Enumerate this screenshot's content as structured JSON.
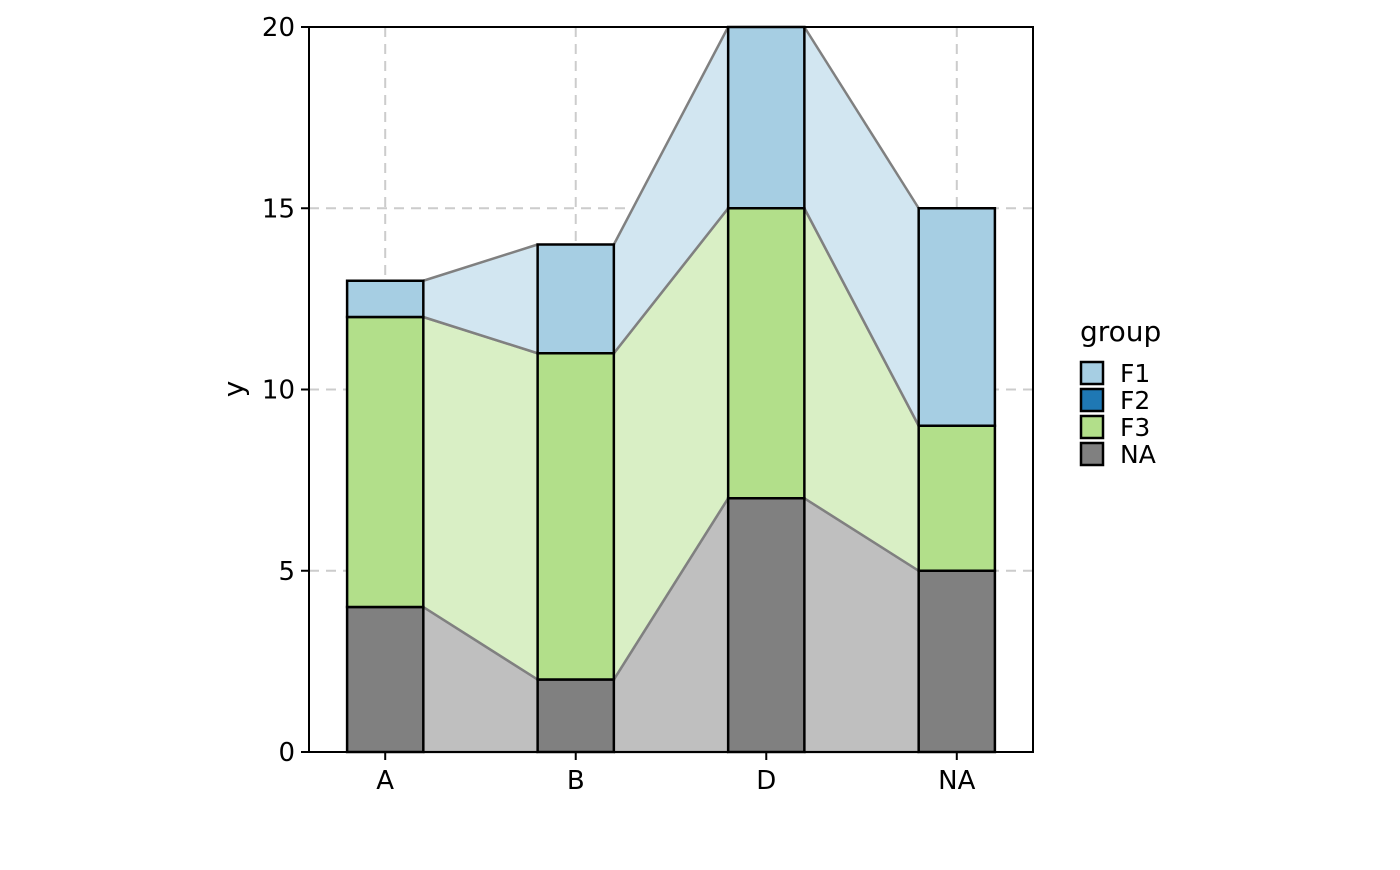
{
  "chart_data": {
    "type": "bar",
    "subtype": "stacked-alluvial",
    "categories": [
      "A",
      "B",
      "D",
      "NA"
    ],
    "ylabel": "y",
    "xlabel": "",
    "ylim": [
      0,
      20
    ],
    "yticks": [
      0,
      5,
      10,
      15,
      20
    ],
    "grid": true,
    "legend": {
      "title": "group",
      "position": "right",
      "entries": [
        "F1",
        "F2",
        "F3",
        "NA"
      ]
    },
    "series": [
      {
        "name": "NA",
        "color": "#808080",
        "flow_color": "#BFBFBF",
        "values": [
          4,
          2,
          7,
          5
        ]
      },
      {
        "name": "F3",
        "color": "#B2DF8A",
        "flow_color": "#D9EFC5",
        "values": [
          8,
          9,
          8,
          4
        ]
      },
      {
        "name": "F2",
        "color": "#1F78B4",
        "flow_color": "#8FBBD9",
        "values": [
          0,
          0,
          0,
          0
        ]
      },
      {
        "name": "F1",
        "color": "#A6CEE3",
        "flow_color": "#D2E6F1",
        "values": [
          1,
          3,
          5,
          6
        ]
      }
    ]
  }
}
